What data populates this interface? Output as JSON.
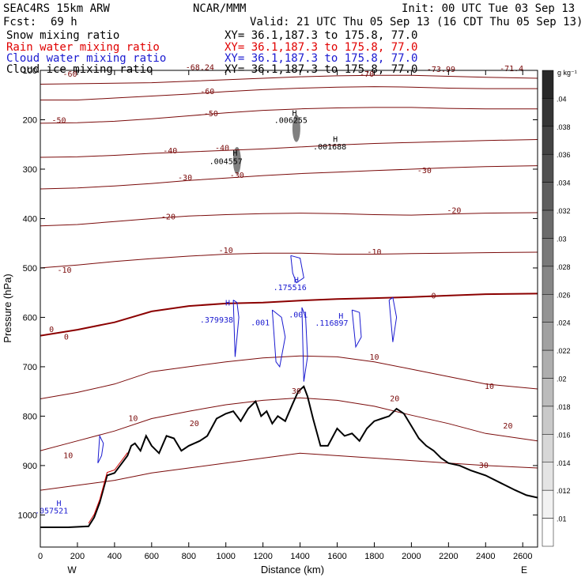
{
  "header": {
    "model": "SEAC4RS 15km ARW",
    "org": "NCAR/MMM",
    "init": "Init: 00 UTC Tue 03 Sep 13",
    "fcst_label": "Fcst:",
    "fcst_value": "69 h",
    "valid": "Valid: 21 UTC Thu 05 Sep 13 (16 CDT Thu 05 Sep 13)"
  },
  "fields": [
    {
      "name": "Snow mixing ratio",
      "xy": "XY=  36.1,187.3 to 175.8, 77.0",
      "color": "#000000"
    },
    {
      "name": "Rain water mixing ratio",
      "xy": "XY=  36.1,187.3 to 175.8, 77.0",
      "color": "#e00000"
    },
    {
      "name": "Cloud water mixing ratio",
      "xy": "XY=  36.1,187.3 to 175.8, 77.0",
      "color": "#1a1ad0"
    },
    {
      "name": "Cloud ice mixing ratio",
      "xy": "XY=  36.1,187.3 to 175.8, 77.0",
      "color": "#000000"
    }
  ],
  "colors": {
    "temperature": "#7a0a0a",
    "freezing_level": "#8b0000",
    "cloud_water": "#1a1ad0",
    "terrain": "#000000",
    "frame": "#000000"
  },
  "colorbar": {
    "unit": "g kg⁻¹",
    "labels": [
      ".04",
      ".038",
      ".036",
      ".034",
      ".032",
      ".03",
      ".028",
      ".026",
      ".024",
      ".022",
      ".02",
      ".018",
      ".016",
      ".014",
      ".012",
      ".01"
    ]
  },
  "chart_data": {
    "type": "cross-section",
    "xlabel": "Distance (km)",
    "ylabel": "Pressure (hPa)",
    "xlim": [
      0,
      2680
    ],
    "ylim": [
      1065,
      100
    ],
    "x_ticks": [
      0,
      200,
      400,
      600,
      800,
      1000,
      1200,
      1400,
      1600,
      1800,
      2000,
      2200,
      2400,
      2600
    ],
    "y_ticks": [
      100,
      200,
      300,
      400,
      500,
      600,
      700,
      800,
      900,
      1000
    ],
    "x_end_labels": {
      "left": "W",
      "right": "E"
    },
    "terrain": {
      "x": [
        0,
        150,
        260,
        290,
        320,
        360,
        400,
        440,
        470,
        490,
        510,
        540,
        570,
        600,
        640,
        680,
        720,
        760,
        800,
        830,
        860,
        900,
        950,
        1000,
        1040,
        1080,
        1120,
        1160,
        1190,
        1220,
        1250,
        1280,
        1320,
        1360,
        1390,
        1420,
        1440,
        1470,
        1510,
        1550,
        1600,
        1640,
        1680,
        1720,
        1760,
        1800,
        1840,
        1880,
        1920,
        1960,
        2000,
        2040,
        2080,
        2120,
        2160,
        2200,
        2260,
        2320,
        2400,
        2480,
        2560,
        2620,
        2680
      ],
      "p": [
        1025,
        1025,
        1023,
        1005,
        975,
        920,
        915,
        895,
        880,
        860,
        855,
        870,
        840,
        860,
        875,
        840,
        845,
        870,
        860,
        855,
        850,
        840,
        805,
        795,
        790,
        810,
        785,
        770,
        800,
        790,
        815,
        800,
        810,
        775,
        750,
        740,
        760,
        805,
        860,
        860,
        825,
        840,
        835,
        850,
        825,
        810,
        805,
        800,
        785,
        795,
        820,
        845,
        860,
        870,
        885,
        895,
        900,
        910,
        920,
        935,
        950,
        960,
        965
      ]
    },
    "isotherms": [
      {
        "label": "-70",
        "p": [
          128,
          127,
          126,
          125,
          122,
          119,
          116,
          113,
          111,
          110,
          110,
          112,
          114,
          116
        ]
      },
      {
        "label": "-60",
        "p": [
          160,
          160,
          156,
          152,
          148,
          143,
          139,
          136,
          134,
          133,
          134,
          136,
          137,
          137
        ]
      },
      {
        "label": "-50",
        "p": [
          207,
          206,
          203,
          198,
          192,
          186,
          181,
          178,
          176,
          175,
          175,
          177,
          178,
          178
        ]
      },
      {
        "label": "-40",
        "p": [
          276,
          275,
          272,
          268,
          265,
          262,
          259,
          255,
          251,
          248,
          246,
          244,
          242,
          240
        ]
      },
      {
        "label": "-30",
        "p": [
          340,
          338,
          334,
          329,
          323,
          318,
          313,
          309,
          306,
          303,
          300,
          297,
          295,
          293
        ]
      },
      {
        "label": "-20",
        "p": [
          415,
          412,
          406,
          400,
          395,
          392,
          390,
          389,
          390,
          392,
          393,
          391,
          389,
          388
        ]
      },
      {
        "label": "-10",
        "p": [
          500,
          494,
          487,
          481,
          476,
          472,
          470,
          470,
          472,
          472,
          471,
          470,
          469,
          468
        ]
      },
      {
        "label": "0",
        "p": [
          637,
          625,
          610,
          588,
          577,
          572,
          570,
          566,
          563,
          561,
          559,
          556,
          553,
          552
        ]
      },
      {
        "label": "10",
        "p": [
          765,
          752,
          735,
          710,
          700,
          690,
          682,
          678,
          680,
          690,
          705,
          720,
          735,
          745
        ]
      },
      {
        "label": "20",
        "p": [
          870,
          850,
          830,
          805,
          790,
          777,
          768,
          763,
          768,
          780,
          798,
          815,
          835,
          850
        ]
      },
      {
        "label": "30",
        "p": [
          950,
          940,
          930,
          915,
          905,
          895,
          885,
          875,
          880,
          885,
          890,
          895,
          900,
          905
        ]
      }
    ],
    "isotherm_x": [
      0,
      200,
      400,
      600,
      800,
      1000,
      1200,
      1400,
      1600,
      1800,
      2000,
      2200,
      2400,
      2680
    ],
    "isotherm_labels": [
      {
        "text": "-60",
        "x": 160,
        "p": 108
      },
      {
        "text": "-68.24",
        "x": 860,
        "p": 94
      },
      {
        "text": "-70",
        "x": 1760,
        "p": 108
      },
      {
        "text": "-73.99",
        "x": 2160,
        "p": 98
      },
      {
        "text": "-71.4",
        "x": 2540,
        "p": 97
      },
      {
        "text": "-60",
        "x": 900,
        "p": 143
      },
      {
        "text": "-50",
        "x": 100,
        "p": 202
      },
      {
        "text": "-50",
        "x": 920,
        "p": 188
      },
      {
        "text": "-40",
        "x": 700,
        "p": 263
      },
      {
        "text": "-40",
        "x": 980,
        "p": 258
      },
      {
        "text": "-30",
        "x": 780,
        "p": 318
      },
      {
        "text": "-30",
        "x": 1060,
        "p": 313
      },
      {
        "text": "-30",
        "x": 2070,
        "p": 303
      },
      {
        "text": "-20",
        "x": 690,
        "p": 397
      },
      {
        "text": "-20",
        "x": 2230,
        "p": 384
      },
      {
        "text": "-10",
        "x": 1000,
        "p": 465
      },
      {
        "text": "-10",
        "x": 130,
        "p": 505
      },
      {
        "text": "-10",
        "x": 1800,
        "p": 468
      },
      {
        "text": "0",
        "x": 60,
        "p": 625
      },
      {
        "text": "0",
        "x": 140,
        "p": 640
      },
      {
        "text": "0",
        "x": 2120,
        "p": 557
      },
      {
        "text": "10",
        "x": 1800,
        "p": 681
      },
      {
        "text": "10",
        "x": 2420,
        "p": 740
      },
      {
        "text": "10",
        "x": 500,
        "p": 805
      },
      {
        "text": "10",
        "x": 150,
        "p": 880
      },
      {
        "text": "20",
        "x": 1910,
        "p": 765
      },
      {
        "text": "20",
        "x": 830,
        "p": 815
      },
      {
        "text": "20",
        "x": 2520,
        "p": 820
      },
      {
        "text": "30",
        "x": 1380,
        "p": 750
      },
      {
        "text": "30",
        "x": 2390,
        "p": 900
      }
    ],
    "cloud_water": {
      "max_labels": [
        {
          "text": "H",
          "x": 100,
          "p": 977
        },
        {
          "text": ".057521",
          "x": 60,
          "p": 992
        },
        {
          "text": "H",
          "x": 1380,
          "p": 525
        },
        {
          "text": ".175516",
          "x": 1345,
          "p": 540
        },
        {
          "text": "H",
          "x": 1010,
          "p": 571
        },
        {
          "text": ".379938",
          "x": 950,
          "p": 606
        },
        {
          "text": ".001",
          "x": 1185,
          "p": 611
        },
        {
          "text": ".001",
          "x": 1390,
          "p": 595
        },
        {
          "text": "H",
          "x": 1620,
          "p": 598
        },
        {
          "text": ".116897",
          "x": 1570,
          "p": 612
        }
      ],
      "contours": [
        {
          "x": [
            310,
            330,
            340,
            320,
            310
          ],
          "p": [
            895,
            880,
            855,
            840,
            895
          ]
        },
        {
          "x": [
            1040,
            1060,
            1070,
            1060,
            1050,
            1040
          ],
          "p": [
            565,
            570,
            600,
            640,
            680,
            565
          ]
        },
        {
          "x": [
            1250,
            1300,
            1320,
            1290,
            1270,
            1250
          ],
          "p": [
            585,
            600,
            640,
            700,
            690,
            585
          ]
        },
        {
          "x": [
            1350,
            1400,
            1420,
            1380,
            1360,
            1350
          ],
          "p": [
            475,
            480,
            520,
            530,
            510,
            475
          ]
        },
        {
          "x": [
            1410,
            1430,
            1440,
            1420,
            1410
          ],
          "p": [
            580,
            600,
            680,
            730,
            580
          ]
        },
        {
          "x": [
            1680,
            1720,
            1730,
            1700,
            1680
          ],
          "p": [
            585,
            590,
            640,
            660,
            585
          ]
        },
        {
          "x": [
            1880,
            1900,
            1920,
            1900,
            1880
          ],
          "p": [
            565,
            560,
            600,
            650,
            565
          ]
        }
      ]
    },
    "cloud_ice": {
      "max_labels": [
        {
          "text": "H",
          "x": 1370,
          "p": 187
        },
        {
          "text": ".006255",
          "x": 1350,
          "p": 202
        },
        {
          "text": "H",
          "x": 1050,
          "p": 268
        },
        {
          "text": ".004557",
          "x": 1000,
          "p": 285
        },
        {
          "text": "H",
          "x": 1590,
          "p": 240
        },
        {
          "text": ".001688",
          "x": 1560,
          "p": 255
        }
      ],
      "patches": [
        {
          "x": 1060,
          "p_top": 255,
          "p_bottom": 310,
          "value": 0.0045
        },
        {
          "x": 1380,
          "p_top": 190,
          "p_bottom": 245,
          "value": 0.006
        }
      ]
    }
  }
}
